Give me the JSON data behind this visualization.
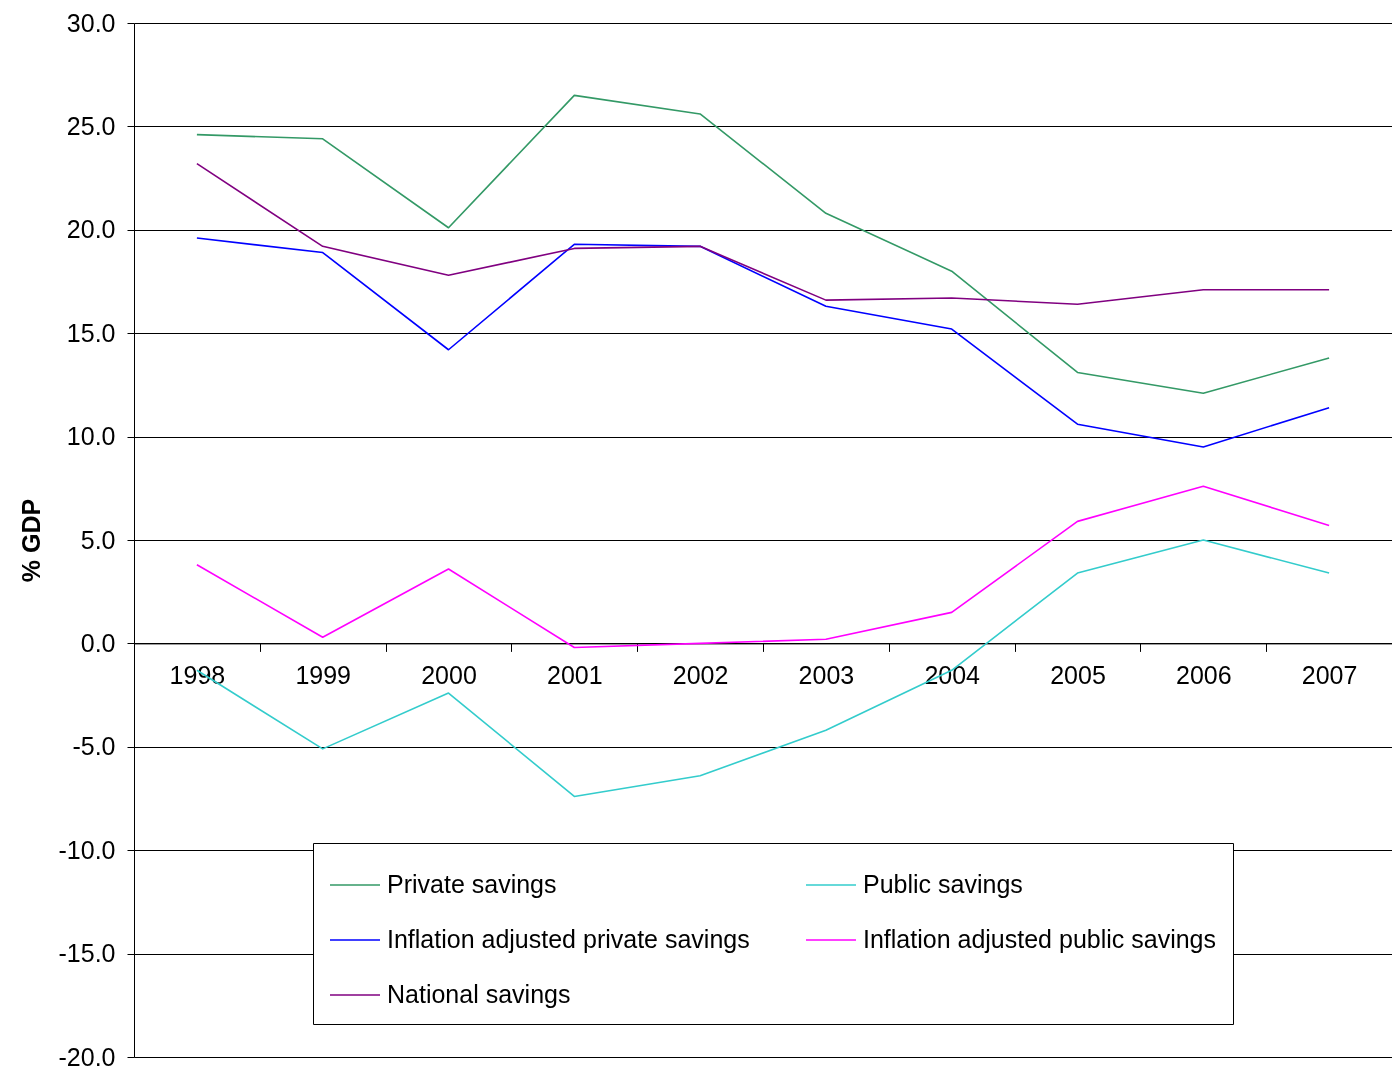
{
  "chart_data": {
    "type": "line",
    "ylabel": "% GDP",
    "categories": [
      "1998",
      "1999",
      "2000",
      "2001",
      "2002",
      "2003",
      "2004",
      "2005",
      "2006",
      "2007"
    ],
    "series": [
      {
        "name": "Private savings",
        "color": "#339966",
        "values": [
          24.6,
          24.4,
          20.1,
          26.5,
          25.6,
          20.8,
          18.0,
          13.1,
          12.1,
          13.8
        ]
      },
      {
        "name": "Public savings",
        "color": "#33cccc",
        "values": [
          -1.3,
          -5.1,
          -2.4,
          -7.4,
          -6.4,
          -4.2,
          -1.3,
          3.4,
          5.0,
          3.4
        ]
      },
      {
        "name": "Inflation adjusted private savings",
        "color": "#0000ff",
        "values": [
          19.6,
          18.9,
          14.2,
          19.3,
          19.2,
          16.3,
          15.2,
          10.6,
          9.5,
          11.4
        ]
      },
      {
        "name": "Inflation adjusted public savings",
        "color": "#ff00ff",
        "values": [
          3.8,
          0.3,
          3.6,
          -0.2,
          0.0,
          0.2,
          1.5,
          5.9,
          7.6,
          5.7
        ]
      },
      {
        "name": "National savings",
        "color": "#800080",
        "values": [
          23.2,
          19.2,
          17.8,
          19.1,
          19.2,
          16.6,
          16.7,
          16.4,
          17.1,
          17.1
        ]
      }
    ],
    "ylim": [
      -20,
      30
    ],
    "yticks": [
      {
        "value": -20,
        "label": "-20.0"
      },
      {
        "value": -15,
        "label": "-15.0"
      },
      {
        "value": -10,
        "label": "-10.0"
      },
      {
        "value": -5,
        "label": "-5.0"
      },
      {
        "value": 0,
        "label": "0.0"
      },
      {
        "value": 5,
        "label": "5.0"
      },
      {
        "value": 10,
        "label": "10.0"
      },
      {
        "value": 15,
        "label": "15.0"
      },
      {
        "value": 20,
        "label": "20.0"
      },
      {
        "value": 25,
        "label": "25.0"
      },
      {
        "value": 30,
        "label": "30.0"
      }
    ],
    "grid": "y",
    "legend": "bottom"
  }
}
